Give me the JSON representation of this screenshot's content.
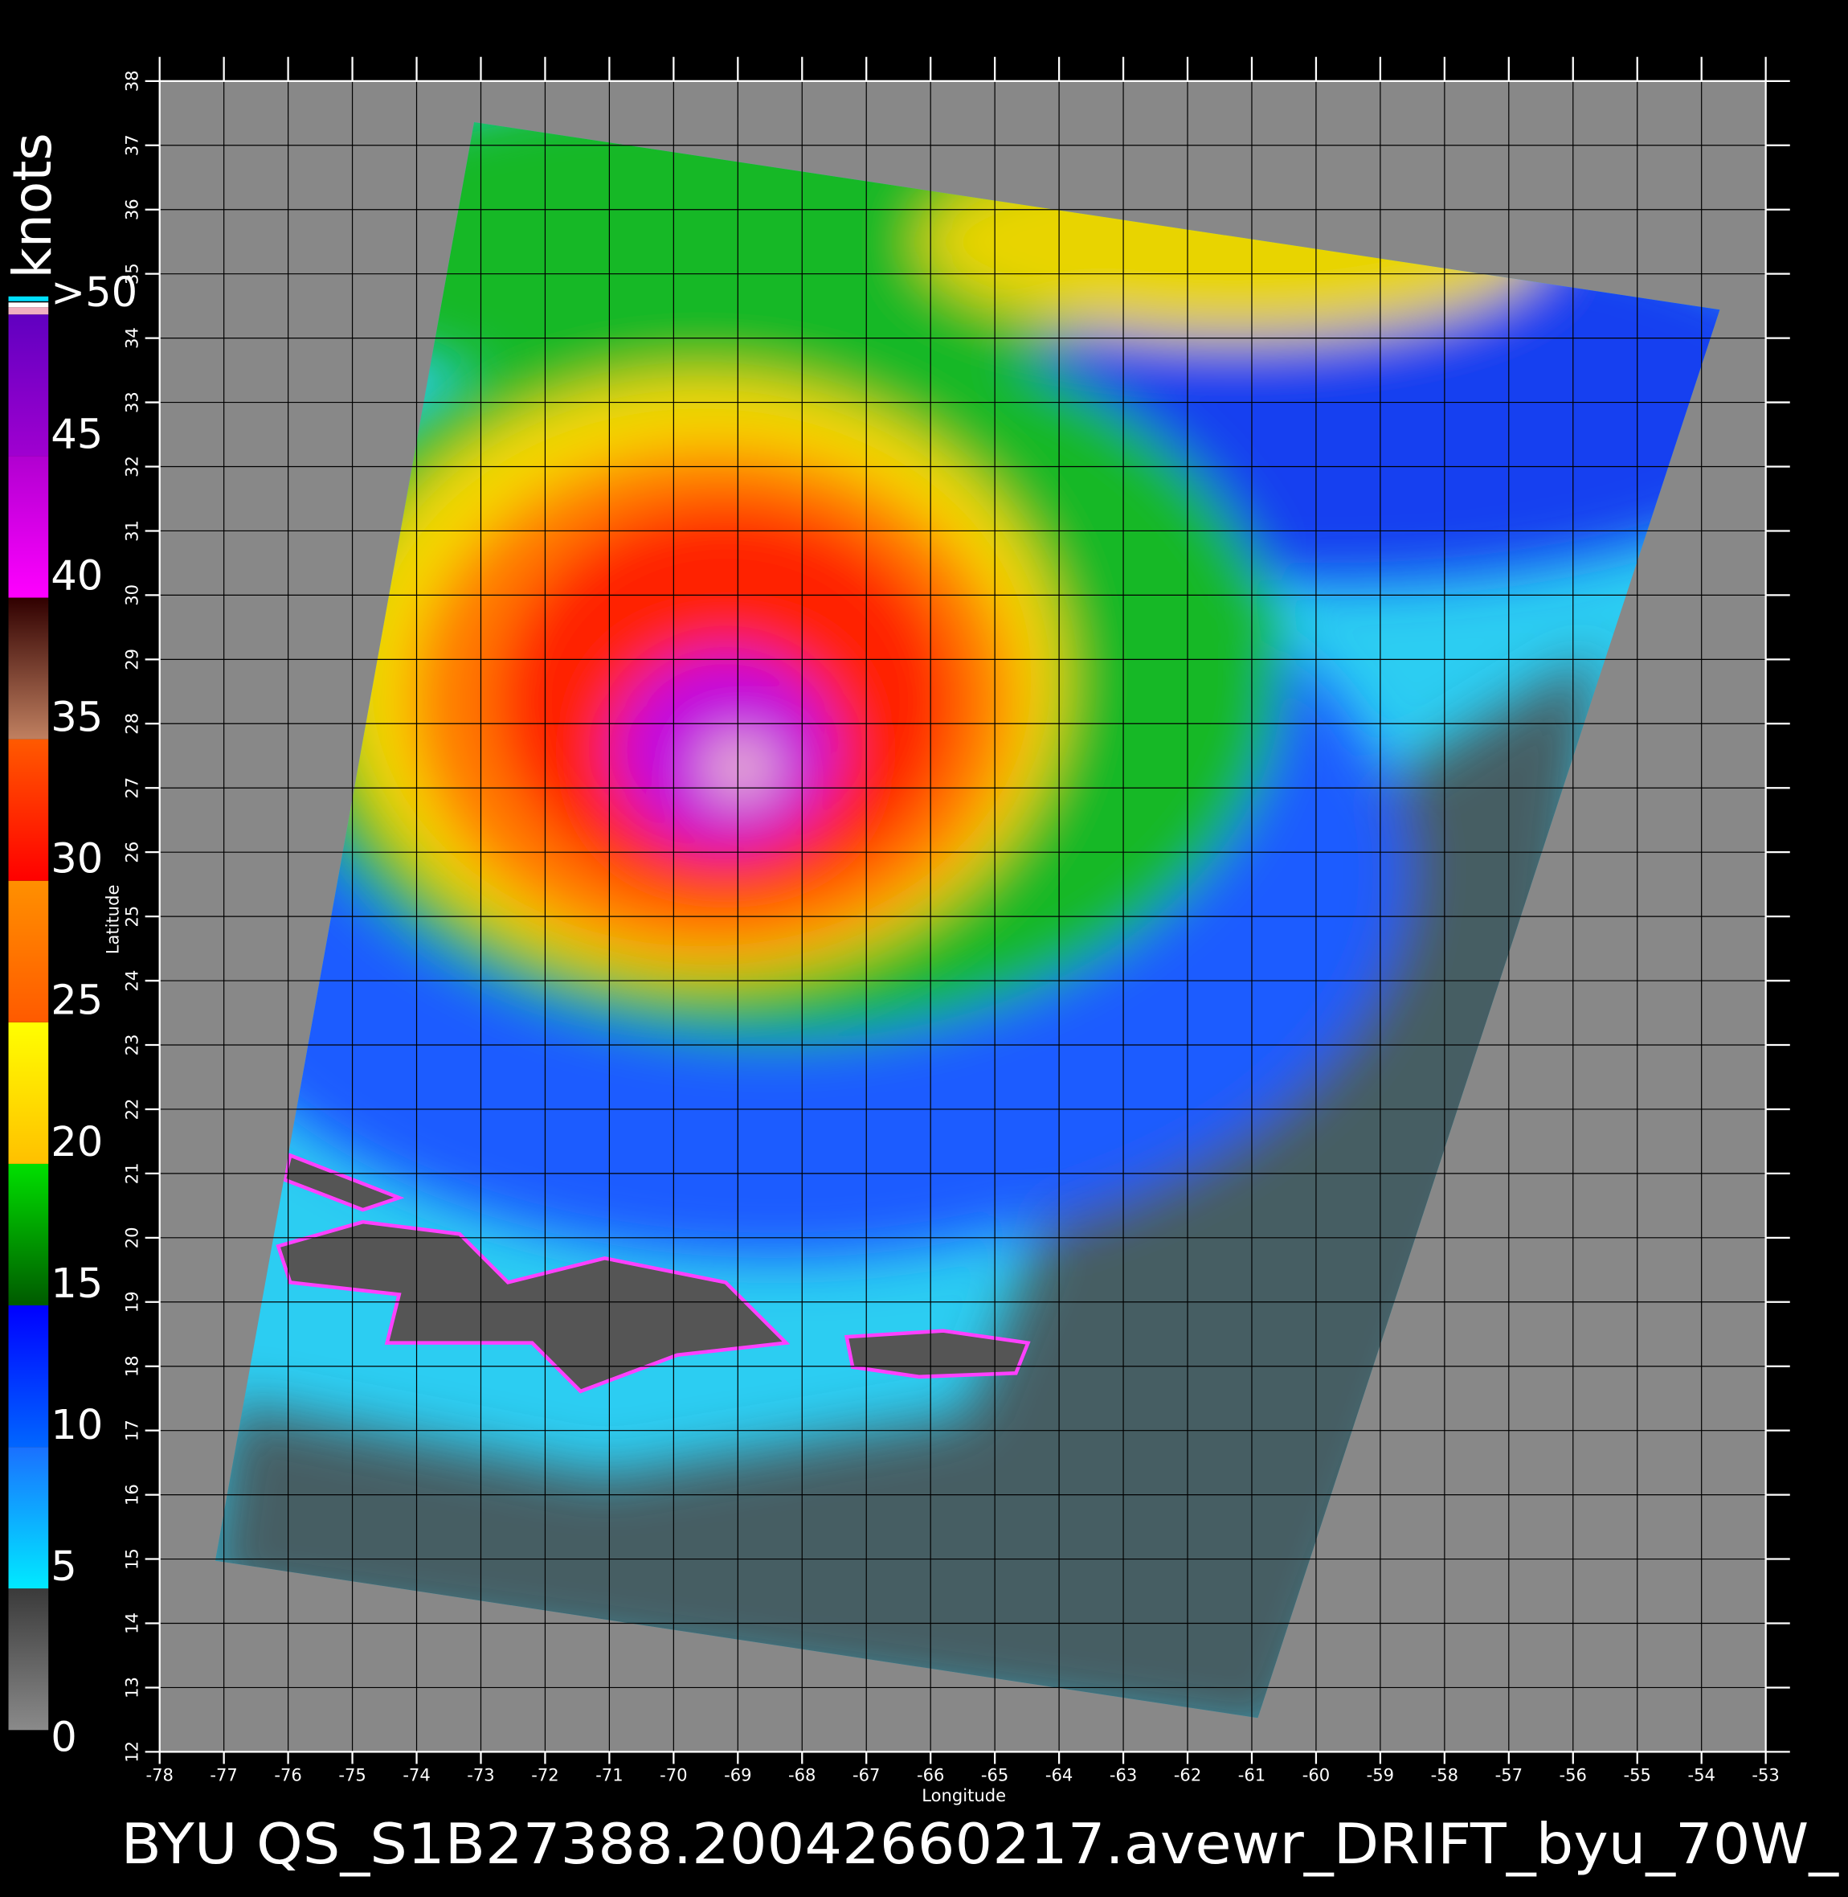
{
  "title": "BYU QS_S1B27388.20042660217.avewr_DRIFT_byu_70W_",
  "axes": {
    "x_label": "Longitude",
    "y_label": "Latitude",
    "xlim": [
      -78,
      -53
    ],
    "ylim": [
      12,
      38
    ],
    "xticks": [
      -78,
      -77,
      -76,
      -75,
      -74,
      -73,
      -72,
      -71,
      -70,
      -69,
      -68,
      -67,
      -66,
      -65,
      -64,
      -63,
      -62,
      -61,
      -60,
      -59,
      -58,
      -57,
      -56,
      -55,
      -54,
      -53
    ],
    "yticks": [
      12,
      13,
      14,
      15,
      16,
      17,
      18,
      19,
      20,
      21,
      22,
      23,
      24,
      25,
      26,
      27,
      28,
      29,
      30,
      31,
      32,
      33,
      34,
      35,
      36,
      37,
      38
    ]
  },
  "colorbar": {
    "unit": "knots",
    "ticks": [
      0,
      5,
      10,
      15,
      20,
      25,
      30,
      35,
      40,
      45,
      {
        "value": 50,
        "label": ">50"
      }
    ],
    "colors": [
      [
        "#3a3a3a",
        "#8a8a8a"
      ],
      [
        "#1a70ff",
        "#00eaff"
      ],
      [
        "#0000ff",
        "#0066ff"
      ],
      [
        "#00e000",
        "#005a00"
      ],
      [
        "#ffff00",
        "#ffc000"
      ],
      [
        "#ff9000",
        "#ff5a00"
      ],
      [
        "#ff5a00",
        "#ff0000"
      ],
      [
        "#300000",
        "#c08060"
      ],
      [
        "#b000d0",
        "#ff00ff"
      ],
      [
        "#6000c0",
        "#a000d0"
      ]
    ]
  }
}
